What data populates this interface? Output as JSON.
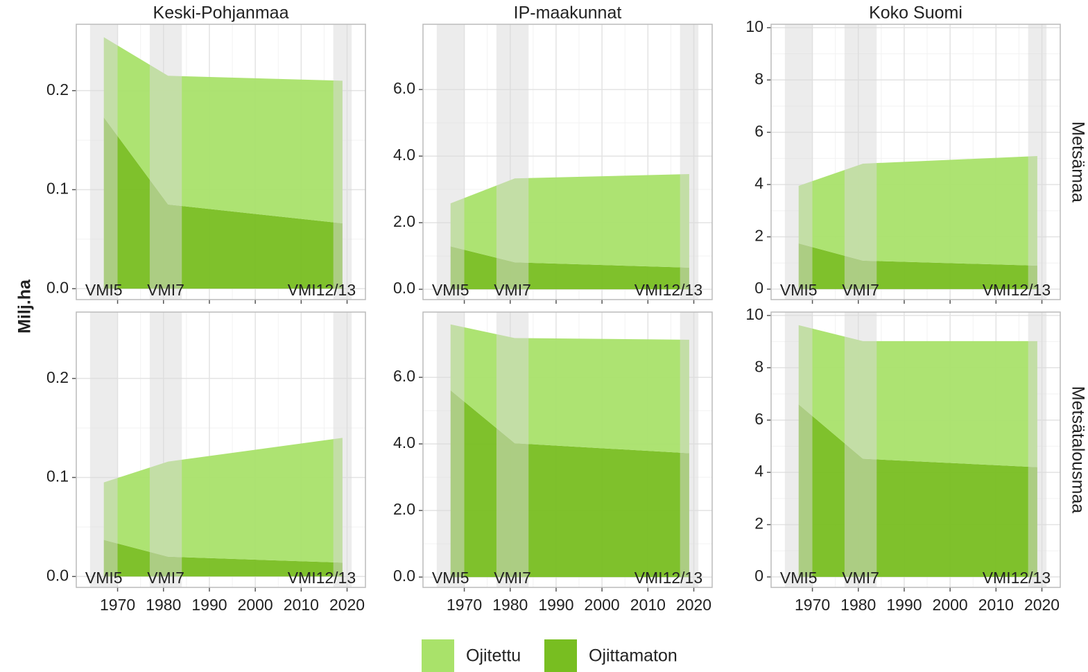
{
  "y_label": "Milj.ha",
  "columns": [
    "Keski-Pohjanmaa",
    "IP-maakunnat",
    "Koko Suomi"
  ],
  "rows": [
    "Metsämaa",
    "Metsätalousmaa"
  ],
  "periods": [
    {
      "label": "VMI5",
      "start": 1964,
      "end": 1970
    },
    {
      "label": "VMI7",
      "start": 1977,
      "end": 1984
    },
    {
      "label": "VMI12/13",
      "start": 2017,
      "end": 2021
    }
  ],
  "chart_data": [
    {
      "type": "area",
      "stacked": true,
      "grid": true,
      "x": [
        1967,
        1981,
        2019
      ],
      "xlim": [
        1961,
        2024
      ],
      "xticks": [
        1970,
        1980,
        1990,
        2000,
        2010,
        2020
      ],
      "ylim": [
        -0.011,
        0.267
      ],
      "yticks": [
        {
          "value": 0,
          "label": "0.0"
        },
        0.1,
        0.2
      ],
      "series": [
        {
          "name": "Ojittamaton",
          "color": "#78be21",
          "values": [
            0.173,
            0.085,
            0.066
          ]
        },
        {
          "name": "Ojitettu",
          "color": "#a9e26a",
          "values": [
            0.081,
            0.13,
            0.144
          ]
        }
      ]
    },
    {
      "type": "area",
      "stacked": true,
      "grid": true,
      "x": [
        1967,
        1981,
        2019
      ],
      "xlim": [
        1961,
        2024
      ],
      "xticks": [
        1970,
        1980,
        1990,
        2000,
        2010,
        2020
      ],
      "ylim": [
        -0.31,
        7.96
      ],
      "yticks": [
        {
          "value": 0,
          "label": "0.0"
        },
        {
          "value": 2,
          "label": "2.0"
        },
        {
          "value": 4,
          "label": "4.0"
        },
        {
          "value": 6,
          "label": "6.0"
        }
      ],
      "series": [
        {
          "name": "Ojittamaton",
          "color": "#78be21",
          "values": [
            1.29,
            0.81,
            0.65
          ]
        },
        {
          "name": "Ojitettu",
          "color": "#a9e26a",
          "values": [
            1.29,
            2.52,
            2.81
          ]
        }
      ]
    },
    {
      "type": "area",
      "stacked": true,
      "grid": true,
      "x": [
        1967,
        1981,
        2019
      ],
      "xlim": [
        1961,
        2024
      ],
      "xticks": [
        1970,
        1980,
        1990,
        2000,
        2010,
        2020
      ],
      "ylim": [
        -0.4,
        10.13
      ],
      "yticks": [
        0,
        2,
        4,
        6,
        8,
        10
      ],
      "series": [
        {
          "name": "Ojittamaton",
          "color": "#78be21",
          "values": [
            1.75,
            1.09,
            0.9
          ]
        },
        {
          "name": "Ojitettu",
          "color": "#a9e26a",
          "values": [
            2.2,
            3.71,
            4.19
          ]
        }
      ]
    },
    {
      "type": "area",
      "stacked": true,
      "grid": true,
      "x": [
        1967,
        1981,
        2019
      ],
      "xlim": [
        1961,
        2024
      ],
      "xticks": [
        1970,
        1980,
        1990,
        2000,
        2010,
        2020
      ],
      "ylim": [
        -0.011,
        0.267
      ],
      "yticks": [
        {
          "value": 0,
          "label": "0.0"
        },
        0.1,
        0.2
      ],
      "series": [
        {
          "name": "Ojittamaton",
          "color": "#78be21",
          "values": [
            0.037,
            0.02,
            0.014
          ]
        },
        {
          "name": "Ojitettu",
          "color": "#a9e26a",
          "values": [
            0.058,
            0.096,
            0.126
          ]
        }
      ]
    },
    {
      "type": "area",
      "stacked": true,
      "grid": true,
      "x": [
        1967,
        1981,
        2019
      ],
      "xlim": [
        1961,
        2024
      ],
      "xticks": [
        1970,
        1980,
        1990,
        2000,
        2010,
        2020
      ],
      "ylim": [
        -0.31,
        7.96
      ],
      "yticks": [
        {
          "value": 0,
          "label": "0.0"
        },
        {
          "value": 2,
          "label": "2.0"
        },
        {
          "value": 4,
          "label": "4.0"
        },
        {
          "value": 6,
          "label": "6.0"
        }
      ],
      "series": [
        {
          "name": "Ojittamaton",
          "color": "#78be21",
          "values": [
            5.61,
            4.02,
            3.72
          ]
        },
        {
          "name": "Ojitettu",
          "color": "#a9e26a",
          "values": [
            1.98,
            3.16,
            3.41
          ]
        }
      ]
    },
    {
      "type": "area",
      "stacked": true,
      "grid": true,
      "x": [
        1967,
        1981,
        2019
      ],
      "xlim": [
        1961,
        2024
      ],
      "xticks": [
        1970,
        1980,
        1990,
        2000,
        2010,
        2020
      ],
      "ylim": [
        -0.4,
        10.13
      ],
      "yticks": [
        0,
        2,
        4,
        6,
        8,
        10
      ],
      "series": [
        {
          "name": "Ojittamaton",
          "color": "#78be21",
          "values": [
            6.6,
            4.52,
            4.2
          ]
        },
        {
          "name": "Ojitettu",
          "color": "#a9e26a",
          "values": [
            3.03,
            4.5,
            4.82
          ]
        }
      ]
    }
  ]
}
